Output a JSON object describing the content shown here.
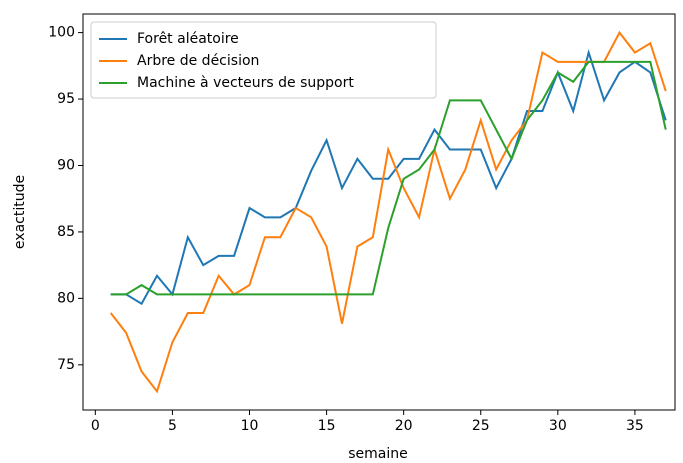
{
  "chart_data": {
    "type": "line",
    "xlabel": "semaine",
    "ylabel": "exactitude",
    "x": [
      1,
      2,
      3,
      4,
      5,
      6,
      7,
      8,
      9,
      10,
      11,
      12,
      13,
      14,
      15,
      16,
      17,
      18,
      19,
      20,
      21,
      22,
      23,
      24,
      25,
      26,
      27,
      28,
      29,
      30,
      31,
      32,
      33,
      34,
      35,
      36,
      37
    ],
    "series": [
      {
        "name": "Forêt aléatoire",
        "color": "#1f77b4",
        "values": [
          80.3,
          80.3,
          79.6,
          81.7,
          80.3,
          84.6,
          82.5,
          83.2,
          83.2,
          86.8,
          86.1,
          86.1,
          86.8,
          89.6,
          91.9,
          88.3,
          90.5,
          89.0,
          89.0,
          90.5,
          90.5,
          92.7,
          91.2,
          91.2,
          91.2,
          88.3,
          90.5,
          94.1,
          94.1,
          97.0,
          94.1,
          98.5,
          94.9,
          97.0,
          97.8,
          97.0,
          93.4
        ]
      },
      {
        "name": "Arbre de décision",
        "color": "#ff7f0e",
        "values": [
          78.9,
          77.4,
          74.5,
          73.0,
          76.7,
          78.9,
          78.9,
          81.7,
          80.3,
          81.0,
          84.6,
          84.6,
          86.8,
          86.1,
          83.9,
          78.1,
          83.9,
          84.6,
          91.2,
          88.3,
          86.1,
          91.2,
          87.5,
          89.7,
          93.4,
          89.7,
          91.9,
          93.4,
          98.5,
          97.8,
          97.8,
          97.8,
          97.8,
          100,
          98.5,
          99.2,
          95.6
        ]
      },
      {
        "name": "Machine à vecteurs de support",
        "color": "#2ca02c",
        "values": [
          80.3,
          80.3,
          81.0,
          80.3,
          80.3,
          80.3,
          80.3,
          80.3,
          80.3,
          80.3,
          80.3,
          80.3,
          80.3,
          80.3,
          80.3,
          80.3,
          80.3,
          80.3,
          85.3,
          89.0,
          89.7,
          91.2,
          94.9,
          94.9,
          94.9,
          92.7,
          90.5,
          93.4,
          94.9,
          97.0,
          96.3,
          97.8,
          97.8,
          97.8,
          97.8,
          97.8,
          92.7
        ]
      }
    ],
    "xlim": [
      -0.8,
      37.6
    ],
    "xticks": [
      0,
      5,
      10,
      15,
      20,
      25,
      30,
      35
    ],
    "ylim": [
      71.6,
      101.4
    ],
    "yticks": [
      75,
      80,
      85,
      90,
      95,
      100
    ],
    "grid": false,
    "legend": "upper left"
  }
}
